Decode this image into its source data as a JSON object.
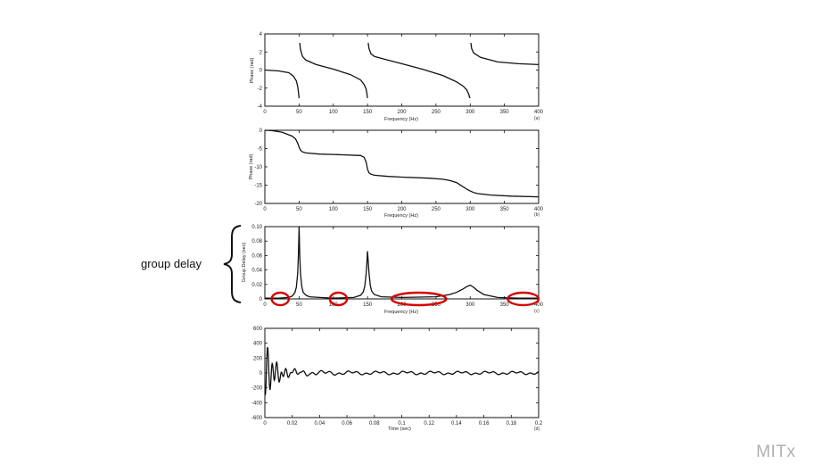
{
  "annotation": {
    "side_label": "group delay",
    "brand": "MITx"
  },
  "chart_data": [
    {
      "type": "line",
      "xlabel": "Frequency (Hz)",
      "ylabel": "Phase (rad)",
      "corner": "(a)",
      "xlim": [
        0,
        400
      ],
      "ylim": [
        -4,
        4
      ],
      "xticks": [
        0,
        50,
        100,
        150,
        200,
        250,
        300,
        350,
        400
      ],
      "yticks": [
        -4,
        -2,
        0,
        2,
        4
      ],
      "series": [
        {
          "x": [
            0,
            20,
            35,
            42,
            46,
            48,
            49,
            50,
            51,
            52,
            55,
            60,
            75,
            100,
            125,
            140,
            145,
            148,
            149,
            150,
            151,
            152,
            155,
            160,
            180,
            200,
            230,
            260,
            280,
            290,
            295,
            298,
            299,
            300,
            301,
            302,
            305,
            315,
            340,
            370,
            400
          ],
          "y": [
            0,
            -0.1,
            -0.3,
            -0.7,
            -1.2,
            -1.8,
            -2.4,
            -3.1,
            3.0,
            2.3,
            1.5,
            1.1,
            0.6,
            0.1,
            -0.5,
            -1.1,
            -1.6,
            -2.1,
            -2.6,
            -3.1,
            3.0,
            2.4,
            1.8,
            1.5,
            1.1,
            0.7,
            0.1,
            -0.6,
            -1.3,
            -1.8,
            -2.2,
            -2.7,
            -3.0,
            -3.1,
            3.0,
            2.4,
            1.9,
            1.4,
            0.9,
            0.7,
            0.6
          ]
        }
      ]
    },
    {
      "type": "line",
      "xlabel": "Frequency (Hz)",
      "ylabel": "Phase (rad)",
      "corner": "(b)",
      "xlim": [
        0,
        400
      ],
      "ylim": [
        -20,
        0
      ],
      "xticks": [
        0,
        50,
        100,
        150,
        200,
        250,
        300,
        350,
        400
      ],
      "yticks": [
        -20,
        -15,
        -10,
        -5,
        0
      ],
      "series": [
        {
          "x": [
            0,
            10,
            25,
            40,
            45,
            48,
            50,
            52,
            55,
            60,
            80,
            100,
            140,
            145,
            148,
            150,
            152,
            155,
            160,
            180,
            200,
            240,
            260,
            270,
            280,
            285,
            290,
            295,
            300,
            305,
            310,
            330,
            360,
            400
          ],
          "y": [
            0,
            -0.1,
            -0.5,
            -1.6,
            -2.4,
            -3.5,
            -4.6,
            -5.4,
            -5.9,
            -6.2,
            -6.5,
            -6.6,
            -6.9,
            -7.4,
            -8.7,
            -10.6,
            -11.6,
            -12.0,
            -12.3,
            -12.6,
            -12.8,
            -13.1,
            -13.4,
            -13.7,
            -14.3,
            -14.9,
            -15.5,
            -16.1,
            -16.6,
            -17.0,
            -17.3,
            -17.7,
            -18.0,
            -18.2
          ]
        }
      ]
    },
    {
      "type": "line",
      "xlabel": "Frequency (Hz)",
      "ylabel": "Group Delay (sec)",
      "corner": "(c)",
      "xlim": [
        0,
        400
      ],
      "ylim": [
        0,
        0.1
      ],
      "xticks": [
        0,
        50,
        100,
        150,
        200,
        250,
        300,
        350,
        400
      ],
      "ytick_labels": [
        "0",
        "0.02",
        "0.04",
        "0.06",
        "0.08",
        "0.10"
      ],
      "yticks": [
        0,
        0.02,
        0.04,
        0.06,
        0.08,
        0.1
      ],
      "series": [
        {
          "x": [
            0,
            20,
            35,
            40,
            44,
            46,
            48,
            49,
            50,
            51,
            52,
            54,
            56,
            60,
            65,
            80,
            100,
            130,
            140,
            144,
            146,
            148,
            149,
            150,
            151,
            152,
            154,
            156,
            160,
            170,
            200,
            250,
            270,
            280,
            290,
            295,
            300,
            305,
            310,
            320,
            340,
            370,
            400
          ],
          "y": [
            0.001,
            0.001,
            0.002,
            0.004,
            0.009,
            0.016,
            0.035,
            0.06,
            0.1,
            0.062,
            0.036,
            0.017,
            0.009,
            0.005,
            0.003,
            0.002,
            0.001,
            0.002,
            0.005,
            0.01,
            0.018,
            0.035,
            0.05,
            0.066,
            0.052,
            0.037,
            0.019,
            0.011,
            0.006,
            0.003,
            0.002,
            0.003,
            0.006,
            0.009,
            0.014,
            0.017,
            0.019,
            0.016,
            0.012,
            0.006,
            0.002,
            0.001,
            0.001
          ]
        }
      ],
      "highlights": [
        [
          10,
          35
        ],
        [
          95,
          120
        ],
        [
          185,
          265
        ],
        [
          355,
          400
        ]
      ]
    },
    {
      "type": "line",
      "xlabel": "Time (sec)",
      "ylabel": "",
      "corner": "(d)",
      "xlim": [
        0,
        0.2
      ],
      "ylim": [
        -600,
        600
      ],
      "xticks": [
        0,
        0.02,
        0.04,
        0.06,
        0.08,
        0.1,
        0.12,
        0.14,
        0.16,
        0.18,
        0.2
      ],
      "xtick_labels": [
        "0",
        "0.02",
        "0.04",
        "0.06",
        "0.08",
        "0.1",
        "0.12",
        "0.14",
        "0.16",
        "0.18",
        "0.2"
      ],
      "yticks": [
        -600,
        -400,
        -200,
        0,
        200,
        400,
        600
      ],
      "series": [
        {
          "signal": "damped-multitone"
        }
      ]
    }
  ]
}
